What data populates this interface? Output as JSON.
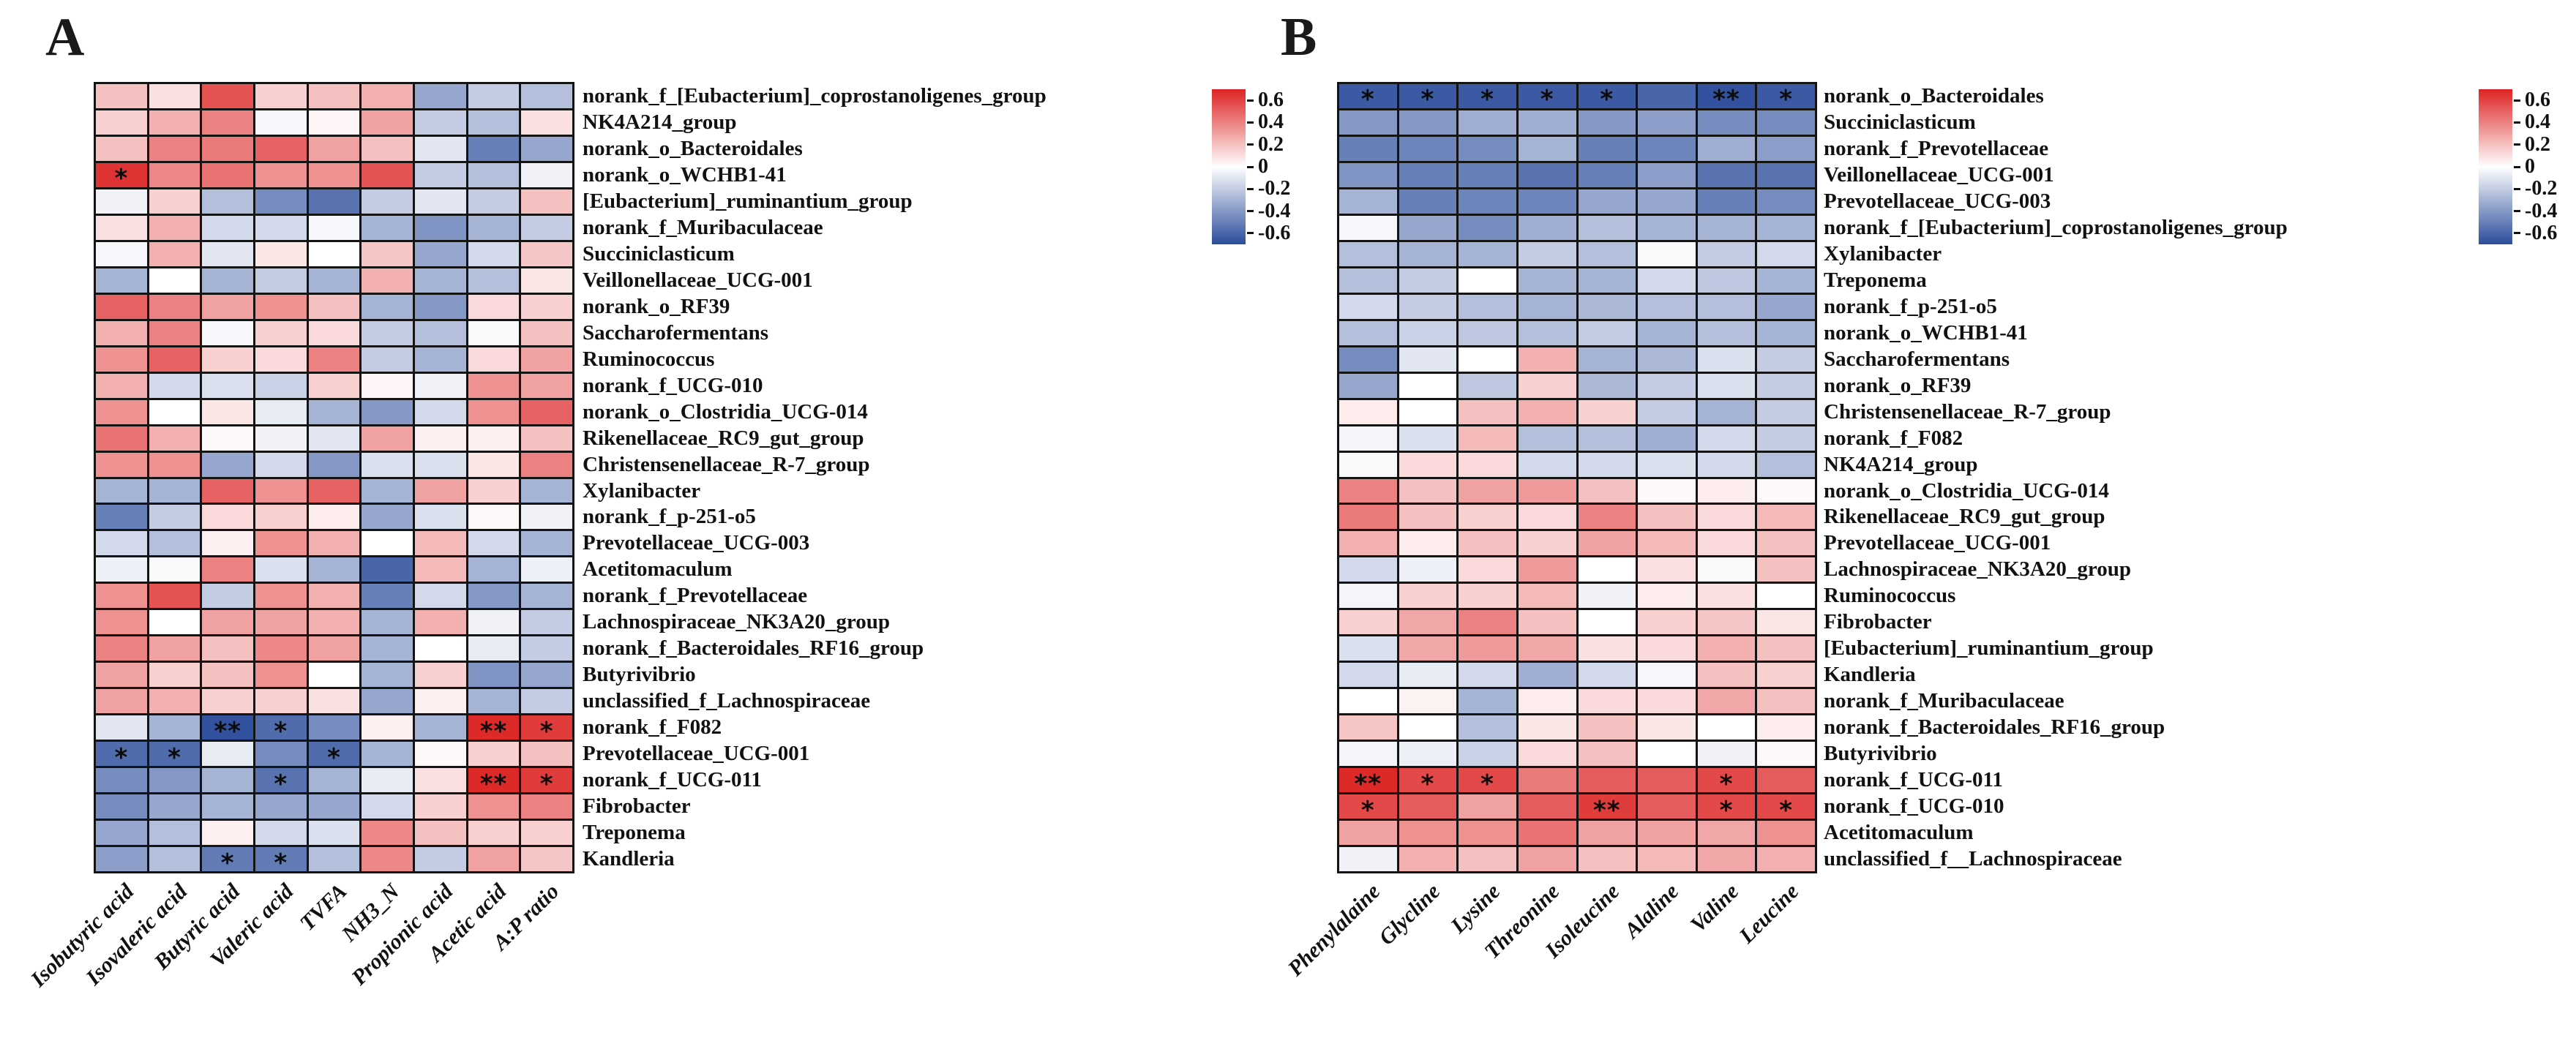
{
  "colorbar": {
    "position": "right",
    "vmin": -0.7,
    "vmax": 0.7,
    "tick_values": [
      0.6,
      0.4,
      0.2,
      0,
      -0.2,
      -0.4,
      -0.6
    ],
    "tick_labels": [
      "0.6",
      "0.4",
      "0.2",
      "0",
      "-0.2",
      "-0.4",
      "-0.6"
    ]
  },
  "colors": {
    "positive_max": "#dd2323",
    "zero": "#ffffff",
    "negative_max": "#2c4d9c",
    "gridline": "#141414",
    "star": "#0c0c0c"
  },
  "chart_data": [
    {
      "type": "heatmap",
      "panel_label": "A",
      "x_categories": [
        "Isobutyric acid",
        "Isovaleric acid",
        "Butyric acid",
        "Valeric acid",
        "TVFA",
        "NH3_N",
        "Propionic acid",
        "Acetic acid",
        "A:P ratio"
      ],
      "y_categories": [
        "norank_f_[Eubacterium]_coprostanoligenes_group",
        "NK4A214_group",
        "norank_o_Bacteroidales",
        "norank_o_WCHB1-41",
        "[Eubacterium]_ruminantium_group",
        "norank_f_Muribaculaceae",
        "Succiniclasticum",
        "Veillonellaceae_UCG-001",
        "norank_o_RF39",
        "Saccharofermentans",
        "Ruminococcus",
        "norank_f_UCG-010",
        "norank_o_Clostridia_UCG-014",
        "Rikenellaceae_RC9_gut_group",
        "Christensenellaceae_R-7_group",
        "Xylanibacter",
        "norank_f_p-251-o5",
        "Prevotellaceae_UCG-003",
        "Acetitomaculum",
        "norank_f_Prevotellaceae",
        "Lachnospiraceae_NK3A20_group",
        "norank_f_Bacteroidales_RF16_group",
        "Butyrivibrio",
        "unclassified_f_Lachnospiraceae",
        "norank_f_F082",
        "Prevotellaceae_UCG-001",
        "norank_f_UCG-011",
        "Fibrobacter",
        "Treponema",
        "Kandleria"
      ],
      "values": [
        [
          0.2,
          0.1,
          0.55,
          0.15,
          0.2,
          0.25,
          -0.35,
          -0.2,
          -0.25
        ],
        [
          0.15,
          0.25,
          0.4,
          -0.03,
          0.03,
          0.3,
          -0.2,
          -0.25,
          0.1
        ],
        [
          0.2,
          0.4,
          0.42,
          0.5,
          0.3,
          0.2,
          -0.1,
          -0.5,
          -0.35
        ],
        [
          0.65,
          0.38,
          0.45,
          0.35,
          0.35,
          0.55,
          -0.2,
          -0.25,
          -0.05
        ],
        [
          -0.05,
          0.15,
          -0.25,
          -0.45,
          -0.55,
          -0.2,
          -0.1,
          -0.2,
          0.2
        ],
        [
          0.1,
          0.25,
          -0.15,
          -0.15,
          -0.03,
          -0.3,
          -0.42,
          -0.3,
          -0.2
        ],
        [
          -0.03,
          0.25,
          -0.1,
          0.08,
          0.0,
          0.18,
          -0.35,
          -0.15,
          0.18
        ],
        [
          -0.3,
          0.0,
          -0.3,
          -0.2,
          -0.3,
          0.25,
          -0.3,
          -0.25,
          0.08
        ],
        [
          0.5,
          0.4,
          0.3,
          0.35,
          0.2,
          -0.3,
          -0.4,
          0.12,
          0.15
        ],
        [
          0.25,
          0.4,
          -0.03,
          0.15,
          0.12,
          -0.2,
          -0.25,
          -0.02,
          0.2
        ],
        [
          0.35,
          0.5,
          0.15,
          0.12,
          0.4,
          -0.2,
          -0.3,
          0.12,
          0.3
        ],
        [
          0.25,
          -0.15,
          -0.12,
          -0.18,
          0.15,
          0.03,
          -0.05,
          0.35,
          0.3
        ],
        [
          0.35,
          0.0,
          0.08,
          -0.08,
          -0.3,
          -0.4,
          -0.15,
          0.35,
          0.5
        ],
        [
          0.45,
          0.25,
          0.02,
          -0.05,
          -0.1,
          0.3,
          0.05,
          0.05,
          0.2
        ],
        [
          0.35,
          0.35,
          -0.35,
          -0.15,
          -0.4,
          -0.12,
          -0.12,
          0.08,
          0.4
        ],
        [
          -0.3,
          -0.3,
          0.5,
          0.35,
          0.5,
          -0.3,
          0.3,
          0.15,
          -0.3
        ],
        [
          -0.5,
          -0.2,
          0.12,
          0.15,
          0.06,
          -0.35,
          -0.12,
          0.02,
          -0.05
        ],
        [
          -0.15,
          -0.25,
          0.05,
          0.35,
          0.25,
          0.0,
          0.22,
          -0.15,
          -0.3
        ],
        [
          -0.06,
          -0.02,
          0.4,
          -0.12,
          -0.3,
          -0.6,
          0.22,
          -0.3,
          -0.06
        ],
        [
          0.35,
          0.55,
          -0.2,
          0.35,
          0.25,
          -0.5,
          -0.15,
          -0.4,
          -0.3
        ],
        [
          0.35,
          0.0,
          0.3,
          0.3,
          0.25,
          -0.3,
          0.25,
          -0.05,
          -0.2
        ],
        [
          0.4,
          0.3,
          0.2,
          0.38,
          0.3,
          -0.3,
          0.0,
          -0.08,
          -0.2
        ],
        [
          0.3,
          0.15,
          0.2,
          0.35,
          0.0,
          -0.3,
          0.15,
          -0.42,
          -0.35
        ],
        [
          0.3,
          0.25,
          0.15,
          0.15,
          0.1,
          -0.35,
          0.05,
          -0.3,
          -0.2
        ],
        [
          -0.1,
          -0.3,
          -0.68,
          -0.58,
          -0.45,
          0.05,
          -0.3,
          0.68,
          0.62
        ],
        [
          -0.58,
          -0.58,
          -0.08,
          -0.45,
          -0.58,
          -0.3,
          0.02,
          0.15,
          0.2
        ],
        [
          -0.45,
          -0.4,
          -0.3,
          -0.55,
          -0.3,
          -0.08,
          0.1,
          0.68,
          0.62
        ],
        [
          -0.45,
          -0.35,
          -0.3,
          -0.35,
          -0.35,
          -0.15,
          0.15,
          0.35,
          0.4
        ],
        [
          -0.35,
          -0.25,
          0.05,
          -0.15,
          -0.12,
          0.38,
          0.2,
          0.15,
          0.15
        ],
        [
          -0.38,
          -0.25,
          -0.52,
          -0.52,
          -0.25,
          0.38,
          -0.2,
          0.3,
          0.18
        ]
      ],
      "significance": [
        [
          3,
          0,
          "*"
        ],
        [
          24,
          2,
          "**"
        ],
        [
          24,
          3,
          "*"
        ],
        [
          24,
          7,
          "**"
        ],
        [
          24,
          8,
          "*"
        ],
        [
          25,
          0,
          "*"
        ],
        [
          25,
          1,
          "*"
        ],
        [
          25,
          4,
          "*"
        ],
        [
          26,
          3,
          "*"
        ],
        [
          26,
          7,
          "**"
        ],
        [
          26,
          8,
          "*"
        ],
        [
          29,
          2,
          "*"
        ],
        [
          29,
          3,
          "*"
        ]
      ]
    },
    {
      "type": "heatmap",
      "panel_label": "B",
      "x_categories": [
        "Phenylalaine",
        "Glycline",
        "Lysine",
        "Threonine",
        "Isoleucine",
        "Alaline",
        "Valine",
        "Leucine"
      ],
      "y_categories": [
        "norank_o_Bacteroidales",
        "Succiniclasticum",
        "norank_f_Prevotellaceae",
        "Veillonellaceae_UCG-001",
        "Prevotellaceae_UCG-003",
        "norank_f_[Eubacterium]_coprostanoligenes_group",
        "Xylanibacter",
        "Treponema",
        "norank_f_p-251-o5",
        "norank_o_WCHB1-41",
        "Saccharofermentans",
        "norank_o_RF39",
        "Christensenellaceae_R-7_group",
        "norank_f_F082",
        "NK4A214_group",
        "norank_o_Clostridia_UCG-014",
        "Rikenellaceae_RC9_gut_group",
        "Prevotellaceae_UCG-001",
        "Lachnospiraceae_NK3A20_group",
        "Ruminococcus",
        "Fibrobacter",
        "[Eubacterium]_ruminantium_group",
        "Kandleria",
        "norank_f_Muribaculaceae",
        "norank_f_Bacteroidales_RF16_group",
        "Butyrivibrio",
        "norank_f_UCG-011",
        "norank_f_UCG-010",
        "Acetitomaculum",
        "unclassified_f__Lachnospiraceae"
      ],
      "values": [
        [
          -0.65,
          -0.65,
          -0.65,
          -0.65,
          -0.65,
          -0.6,
          -0.68,
          -0.65
        ],
        [
          -0.4,
          -0.4,
          -0.32,
          -0.32,
          -0.4,
          -0.38,
          -0.45,
          -0.45
        ],
        [
          -0.5,
          -0.48,
          -0.45,
          -0.3,
          -0.5,
          -0.48,
          -0.32,
          -0.38
        ],
        [
          -0.42,
          -0.5,
          -0.5,
          -0.55,
          -0.5,
          -0.38,
          -0.55,
          -0.55
        ],
        [
          -0.3,
          -0.5,
          -0.48,
          -0.48,
          -0.35,
          -0.35,
          -0.5,
          -0.45
        ],
        [
          -0.03,
          -0.35,
          -0.45,
          -0.32,
          -0.25,
          -0.3,
          -0.3,
          -0.3
        ],
        [
          -0.25,
          -0.3,
          -0.3,
          -0.2,
          -0.25,
          -0.02,
          -0.2,
          -0.15
        ],
        [
          -0.25,
          -0.2,
          0.0,
          -0.3,
          -0.3,
          -0.15,
          -0.22,
          -0.3
        ],
        [
          -0.15,
          -0.2,
          -0.25,
          -0.3,
          -0.28,
          -0.25,
          -0.25,
          -0.35
        ],
        [
          -0.25,
          -0.18,
          -0.22,
          -0.25,
          -0.2,
          -0.3,
          -0.25,
          -0.3
        ],
        [
          -0.45,
          -0.1,
          0.0,
          0.25,
          -0.3,
          -0.28,
          -0.12,
          -0.2
        ],
        [
          -0.35,
          0.0,
          -0.22,
          0.15,
          -0.28,
          -0.2,
          -0.12,
          -0.2
        ],
        [
          0.06,
          0.0,
          0.2,
          0.25,
          0.15,
          -0.2,
          -0.3,
          -0.2
        ],
        [
          -0.04,
          -0.12,
          0.22,
          -0.25,
          -0.25,
          -0.32,
          -0.15,
          -0.2
        ],
        [
          -0.02,
          0.12,
          0.12,
          -0.15,
          -0.15,
          -0.12,
          -0.15,
          -0.25
        ],
        [
          0.4,
          0.2,
          0.3,
          0.32,
          0.2,
          0.02,
          0.06,
          0.02
        ],
        [
          0.42,
          0.2,
          0.15,
          0.12,
          0.4,
          0.2,
          0.12,
          0.22
        ],
        [
          0.25,
          0.06,
          0.2,
          0.15,
          0.3,
          0.22,
          0.12,
          0.2
        ],
        [
          -0.15,
          -0.06,
          0.12,
          0.32,
          0.0,
          0.1,
          -0.02,
          0.2
        ],
        [
          -0.04,
          0.15,
          0.15,
          0.22,
          -0.05,
          0.06,
          0.1,
          0.0
        ],
        [
          0.15,
          0.28,
          0.4,
          0.2,
          0.0,
          0.15,
          0.18,
          0.08
        ],
        [
          -0.12,
          0.28,
          0.32,
          0.28,
          0.1,
          0.12,
          0.25,
          0.2
        ],
        [
          -0.15,
          -0.08,
          -0.15,
          -0.32,
          -0.15,
          -0.03,
          0.2,
          0.15
        ],
        [
          0.0,
          0.04,
          -0.3,
          0.06,
          0.12,
          0.12,
          0.28,
          0.2
        ],
        [
          0.18,
          0.0,
          -0.25,
          0.08,
          0.2,
          0.08,
          0.0,
          0.06
        ],
        [
          -0.04,
          -0.06,
          -0.18,
          0.12,
          0.2,
          0.0,
          -0.05,
          0.02
        ],
        [
          0.68,
          0.58,
          0.58,
          0.42,
          0.52,
          0.52,
          0.58,
          0.52
        ],
        [
          0.58,
          0.52,
          0.3,
          0.52,
          0.62,
          0.52,
          0.58,
          0.58
        ],
        [
          0.3,
          0.35,
          0.35,
          0.45,
          0.3,
          0.3,
          0.28,
          0.35
        ],
        [
          -0.05,
          0.25,
          0.2,
          0.3,
          0.2,
          0.22,
          0.28,
          0.25
        ]
      ],
      "significance": [
        [
          0,
          0,
          "*"
        ],
        [
          0,
          1,
          "*"
        ],
        [
          0,
          2,
          "*"
        ],
        [
          0,
          3,
          "*"
        ],
        [
          0,
          4,
          "*"
        ],
        [
          0,
          6,
          "**"
        ],
        [
          0,
          7,
          "*"
        ],
        [
          26,
          0,
          "**"
        ],
        [
          26,
          1,
          "*"
        ],
        [
          26,
          2,
          "*"
        ],
        [
          26,
          6,
          "*"
        ],
        [
          27,
          0,
          "*"
        ],
        [
          27,
          4,
          "**"
        ],
        [
          27,
          6,
          "*"
        ],
        [
          27,
          7,
          "*"
        ]
      ]
    }
  ]
}
